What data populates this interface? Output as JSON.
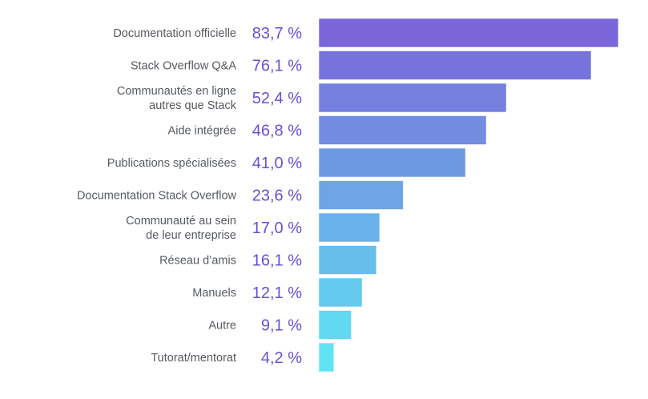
{
  "chart_data": {
    "type": "bar",
    "orientation": "horizontal",
    "title": "",
    "xlabel": "",
    "ylabel": "",
    "xlim": [
      0,
      83.7
    ],
    "grid": false,
    "legend": "none",
    "value_suffix": " %",
    "decimal_separator": ",",
    "categories": [
      [
        "Documentation officielle"
      ],
      [
        "Stack Overflow Q&A"
      ],
      [
        "Communautés en ligne",
        "autres que Stack"
      ],
      [
        "Aide intégrée"
      ],
      [
        "Publications spécialisées"
      ],
      [
        "Documentation Stack Overflow"
      ],
      [
        "Communauté au sein",
        "de leur entreprise"
      ],
      [
        "Réseau d’amis"
      ],
      [
        "Manuels"
      ],
      [
        "Autre"
      ],
      [
        "Tutorat/mentorat"
      ]
    ],
    "values": [
      83.7,
      76.1,
      52.4,
      46.8,
      41.0,
      23.6,
      17.0,
      16.1,
      12.1,
      9.1,
      4.2
    ],
    "value_labels": [
      "83,7 %",
      "76,1 %",
      "52,4 %",
      "46,8 %",
      "41,0 %",
      "23,6 %",
      "17,0 %",
      "16,1 %",
      "12,1 %",
      "9,1 %",
      "4,2 %"
    ],
    "colors": {
      "bar_top": "#7a66d9",
      "bar_bottom": "#5fe3f3",
      "value_text": "#6a4fd6",
      "category_text": "#555a5f"
    }
  }
}
